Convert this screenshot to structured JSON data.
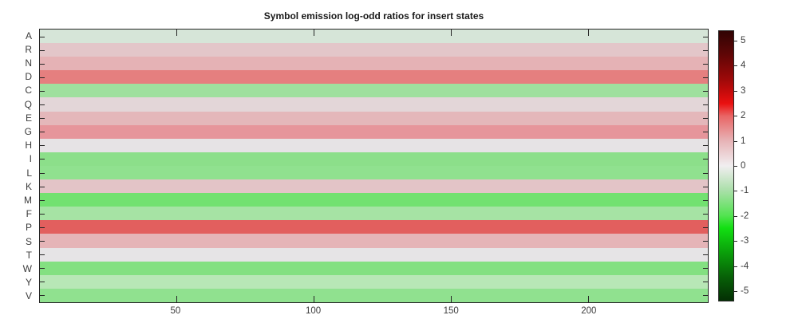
{
  "colors": {
    "background": "#ffffff",
    "axis_line": "#262626",
    "tick_label": "#3c3c3c",
    "title_text": "#1a1a1a"
  },
  "chart_data": {
    "type": "heatmap",
    "title": "Symbol emission log-odd ratios for insert states",
    "xlabel": "",
    "ylabel": "",
    "x_axis": {
      "range": [
        0.5,
        243.5
      ],
      "n_positions": 243,
      "ticks": [
        50,
        100,
        150,
        200
      ]
    },
    "y_axis": {
      "categories": [
        "A",
        "R",
        "N",
        "D",
        "C",
        "Q",
        "E",
        "G",
        "H",
        "I",
        "L",
        "K",
        "M",
        "F",
        "P",
        "S",
        "T",
        "W",
        "Y",
        "V"
      ]
    },
    "note": "Each amino-acid row is a uniform color across all ~243 insert-state positions (constant log-odd ratio per row).",
    "rows": [
      {
        "aa": "A",
        "value": -0.45,
        "color": "#d6e5d8"
      },
      {
        "aa": "R",
        "value": 0.75,
        "color": "#e3c6c9"
      },
      {
        "aa": "N",
        "value": 1.05,
        "color": "#e5b2b5"
      },
      {
        "aa": "D",
        "value": 1.85,
        "color": "#e57f7f"
      },
      {
        "aa": "C",
        "value": -1.2,
        "color": "#9fe09e"
      },
      {
        "aa": "Q",
        "value": 0.45,
        "color": "#e3d6d8"
      },
      {
        "aa": "E",
        "value": 1.0,
        "color": "#e4b7ba"
      },
      {
        "aa": "G",
        "value": 1.5,
        "color": "#e6959b"
      },
      {
        "aa": "H",
        "value": 0.05,
        "color": "#e6e3e5"
      },
      {
        "aa": "I",
        "value": -1.4,
        "color": "#8cdf8a"
      },
      {
        "aa": "L",
        "value": -1.3,
        "color": "#90e18f"
      },
      {
        "aa": "K",
        "value": 0.8,
        "color": "#e3c4c7"
      },
      {
        "aa": "M",
        "value": -1.7,
        "color": "#72e170"
      },
      {
        "aa": "F",
        "value": -1.1,
        "color": "#a6e3a4"
      },
      {
        "aa": "P",
        "value": 2.2,
        "color": "#e25f5e"
      },
      {
        "aa": "S",
        "value": 1.05,
        "color": "#e5b4b7"
      },
      {
        "aa": "T",
        "value": 0.0,
        "color": "#e6e4e6"
      },
      {
        "aa": "W",
        "value": -1.5,
        "color": "#83e081"
      },
      {
        "aa": "Y",
        "value": -0.85,
        "color": "#b8e7b6"
      },
      {
        "aa": "V",
        "value": -1.3,
        "color": "#90e18f"
      }
    ],
    "colorbar": {
      "range": [
        -5.41,
        5.41
      ],
      "ticks": [
        5,
        4,
        3,
        2,
        1,
        0,
        -1,
        -2,
        -3,
        -4,
        -5
      ],
      "legend_position": "right",
      "gradient_stops": [
        {
          "pos": 0.0,
          "color": "#300404"
        },
        {
          "pos": 0.084,
          "color": "#5e0606"
        },
        {
          "pos": 0.177,
          "color": "#9c0909"
        },
        {
          "pos": 0.241,
          "color": "#d40c0c"
        },
        {
          "pos": 0.269,
          "color": "#ea1111"
        },
        {
          "pos": 0.315,
          "color": "#e96565"
        },
        {
          "pos": 0.408,
          "color": "#e7b4b7"
        },
        {
          "pos": 0.5,
          "color": "#f1eef0"
        },
        {
          "pos": 0.592,
          "color": "#a9dfa8"
        },
        {
          "pos": 0.685,
          "color": "#52e350"
        },
        {
          "pos": 0.731,
          "color": "#12df12"
        },
        {
          "pos": 0.823,
          "color": "#0a9e0a"
        },
        {
          "pos": 0.916,
          "color": "#075e07"
        },
        {
          "pos": 1.0,
          "color": "#042f04"
        }
      ]
    }
  }
}
